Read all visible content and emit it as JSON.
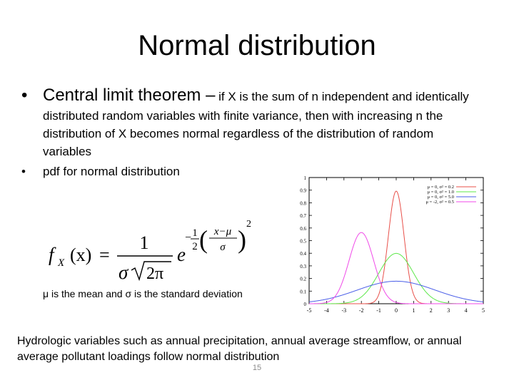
{
  "slide": {
    "title": "Normal distribution",
    "bullet_1": {
      "heading": "Central limit theorem –",
      "text": " if X is the sum of n independent and identically distributed random variables with finite variance, then with increasing n the distribution of X becomes normal regardless of the distribution of random variables"
    },
    "bullet_2": "pdf for normal distribution",
    "bullet_glyph": "•",
    "formula": {
      "f": "f",
      "sub_x": "X",
      "arg": "(x)",
      "equals": "=",
      "numerator": "1",
      "sigma": "σ",
      "two_pi": "2π",
      "e": "e",
      "minus": "−",
      "half_num": "1",
      "half_den": "2",
      "lparen": "(",
      "rparen": ")",
      "inner_num": "x−μ",
      "inner_den": "σ",
      "exp2": "2"
    },
    "note": "μ is the mean and σ is the standard deviation",
    "footer_text": "Hydrologic variables such as annual precipitation, annual average streamflow, or annual average pollutant loadings follow normal distribution",
    "page_number": "15"
  },
  "chart_data": {
    "type": "line",
    "xlim": [
      -5,
      5
    ],
    "ylim": [
      0,
      1
    ],
    "x_ticks": [
      "-5",
      "-4",
      "-3",
      "-2",
      "-1",
      "0",
      "1",
      "2",
      "3",
      "4",
      "5"
    ],
    "y_ticks": [
      "0",
      "0.1",
      "0.2",
      "0.3",
      "0.4",
      "0.5",
      "0.6",
      "0.7",
      "0.8",
      "0.9",
      "1"
    ],
    "grid": false,
    "legend_position": "top-right",
    "series": [
      {
        "name": "μ =  0, σ² = 0.2",
        "mu": 0,
        "var": 0.2,
        "color": "#e8504a"
      },
      {
        "name": "μ =  0, σ² = 1.0",
        "mu": 0,
        "var": 1.0,
        "color": "#5de84a"
      },
      {
        "name": "μ =  0, σ² = 5.0",
        "mu": 0,
        "var": 5.0,
        "color": "#4a5ee8"
      },
      {
        "name": "μ = -2, σ² = 0.5",
        "mu": -2,
        "var": 0.5,
        "color": "#f04ae8"
      }
    ]
  }
}
